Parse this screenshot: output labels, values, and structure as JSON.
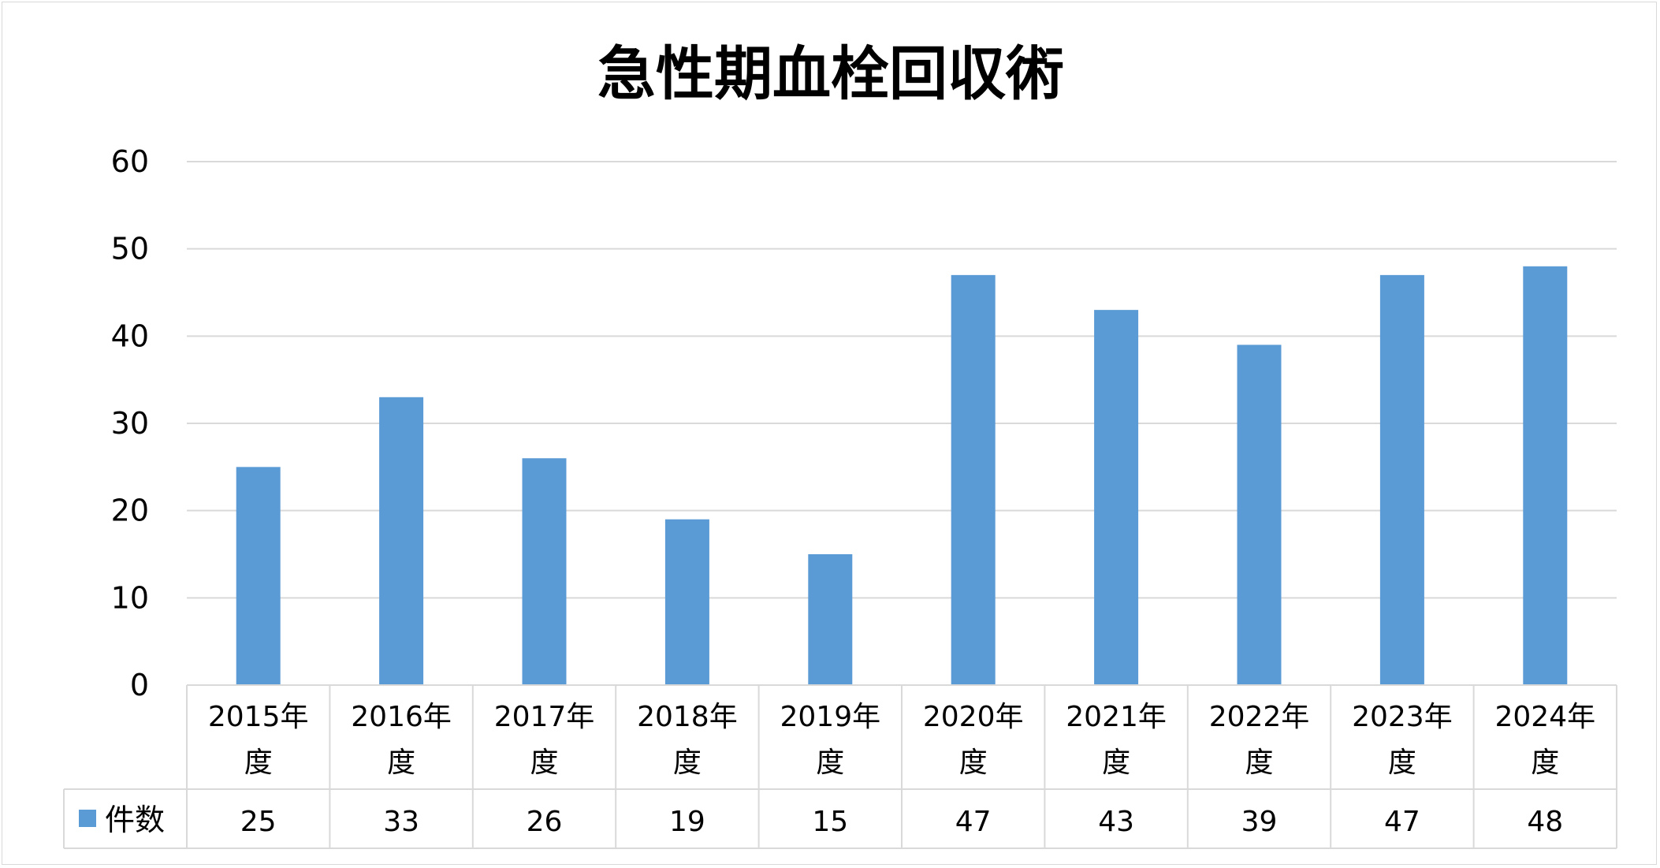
{
  "chart_data": {
    "type": "bar",
    "title": "急性期血栓回収術",
    "categories": [
      [
        "2015年",
        "度"
      ],
      [
        "2016年",
        "度"
      ],
      [
        "2017年",
        "度"
      ],
      [
        "2018年",
        "度"
      ],
      [
        "2019年",
        "度"
      ],
      [
        "2020年",
        "度"
      ],
      [
        "2021年",
        "度"
      ],
      [
        "2022年",
        "度"
      ],
      [
        "2023年",
        "度"
      ],
      [
        "2024年",
        "度"
      ]
    ],
    "series": [
      {
        "name": "件数",
        "values": [
          25,
          33,
          26,
          19,
          15,
          47,
          43,
          39,
          47,
          48
        ],
        "color": "#5b9bd5"
      }
    ],
    "ylim": [
      0,
      60
    ],
    "yticks": [
      0,
      10,
      20,
      30,
      40,
      50,
      60
    ],
    "grid": true,
    "legend": "data-table"
  }
}
